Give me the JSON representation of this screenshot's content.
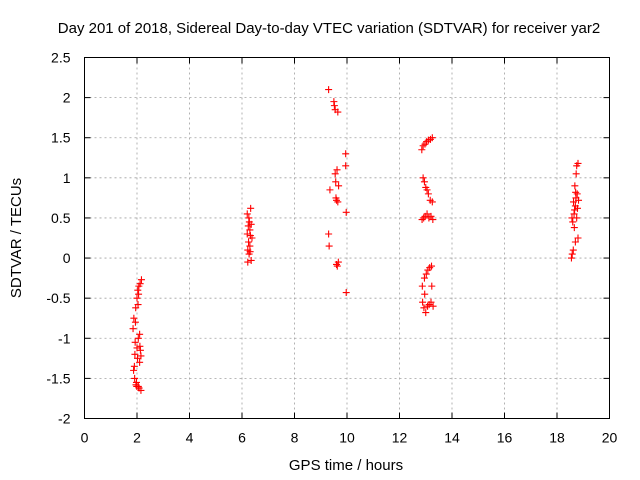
{
  "chart_data": {
    "type": "scatter",
    "title": "Day 201 of 2018, Sidereal Day-to-day VTEC variation (SDTVAR) for receiver yar2",
    "xlabel": "GPS time / hours",
    "ylabel": "SDTVAR / TECUs",
    "xlim": [
      0,
      20
    ],
    "ylim": [
      -2,
      2.5
    ],
    "xticks": [
      "0",
      "2",
      "4",
      "6",
      "8",
      "10",
      "12",
      "14",
      "16",
      "18",
      "20"
    ],
    "xtick_values": [
      0,
      2,
      4,
      6,
      8,
      10,
      12,
      14,
      16,
      18,
      20
    ],
    "yticks": [
      "-2",
      "-1.5",
      "-1",
      "-0.5",
      "0",
      "0.5",
      "1",
      "1.5",
      "2",
      "2.5"
    ],
    "ytick_values": [
      -2,
      -1.5,
      -1,
      -0.5,
      0,
      0.5,
      1,
      1.5,
      2,
      2.5
    ],
    "grid": true,
    "marker": "+",
    "color": "#ff0000",
    "series": [
      {
        "name": "SDTVAR",
        "points": [
          [
            1.85,
            -0.88
          ],
          [
            1.88,
            -0.75
          ],
          [
            1.9,
            -1.35
          ],
          [
            1.92,
            -1.2
          ],
          [
            1.93,
            -1.05
          ],
          [
            1.95,
            -0.62
          ],
          [
            1.96,
            -1.58
          ],
          [
            1.98,
            -1.55
          ],
          [
            2.0,
            -0.5
          ],
          [
            2.0,
            -1.12
          ],
          [
            2.02,
            -1.25
          ],
          [
            2.03,
            -0.4
          ],
          [
            2.05,
            -1.6
          ],
          [
            2.05,
            -1.0
          ],
          [
            2.07,
            -0.35
          ],
          [
            2.08,
            -1.62
          ],
          [
            2.1,
            -1.3
          ],
          [
            2.1,
            -0.95
          ],
          [
            2.12,
            -0.32
          ],
          [
            2.13,
            -1.15
          ],
          [
            2.15,
            -1.65
          ],
          [
            2.15,
            -1.22
          ],
          [
            2.17,
            -0.27
          ],
          [
            1.87,
            -1.4
          ],
          [
            1.94,
            -0.8
          ],
          [
            1.99,
            -1.6
          ],
          [
            2.06,
            -0.45
          ],
          [
            2.11,
            -1.1
          ],
          [
            1.91,
            -1.5
          ],
          [
            2.04,
            -0.58
          ],
          [
            6.2,
            0.55
          ],
          [
            6.2,
            0.3
          ],
          [
            6.22,
            0.1
          ],
          [
            6.22,
            -0.05
          ],
          [
            6.24,
            0.4
          ],
          [
            6.25,
            0.2
          ],
          [
            6.27,
            0.05
          ],
          [
            6.28,
            0.45
          ],
          [
            6.3,
            0.35
          ],
          [
            6.3,
            0.15
          ],
          [
            6.32,
            0.28
          ],
          [
            6.33,
            0.62
          ],
          [
            6.35,
            0.42
          ],
          [
            6.35,
            -0.03
          ],
          [
            6.38,
            0.25
          ],
          [
            6.26,
            0.5
          ],
          [
            6.31,
            0.08
          ],
          [
            9.3,
            2.1
          ],
          [
            9.3,
            0.3
          ],
          [
            9.32,
            0.15
          ],
          [
            9.35,
            0.85
          ],
          [
            9.5,
            1.95
          ],
          [
            9.52,
            1.9
          ],
          [
            9.55,
            1.85
          ],
          [
            9.55,
            1.05
          ],
          [
            9.57,
            0.95
          ],
          [
            9.58,
            0.75
          ],
          [
            9.6,
            -0.08
          ],
          [
            9.6,
            0.72
          ],
          [
            9.62,
            1.1
          ],
          [
            9.63,
            -0.1
          ],
          [
            9.65,
            0.7
          ],
          [
            9.65,
            1.82
          ],
          [
            9.67,
            -0.05
          ],
          [
            9.68,
            0.9
          ],
          [
            9.95,
            1.3
          ],
          [
            9.95,
            1.15
          ],
          [
            9.97,
            0.57
          ],
          [
            9.97,
            -0.43
          ],
          [
            12.85,
            1.35
          ],
          [
            12.86,
            0.48
          ],
          [
            12.87,
            -0.35
          ],
          [
            12.88,
            -0.55
          ],
          [
            12.9,
            1.0
          ],
          [
            12.9,
            1.4
          ],
          [
            12.92,
            0.5
          ],
          [
            12.93,
            -0.62
          ],
          [
            12.95,
            0.95
          ],
          [
            12.95,
            -0.25
          ],
          [
            12.97,
            1.42
          ],
          [
            12.98,
            0.52
          ],
          [
            13.0,
            0.88
          ],
          [
            13.0,
            -0.68
          ],
          [
            13.02,
            -0.2
          ],
          [
            13.03,
            1.45
          ],
          [
            13.05,
            0.55
          ],
          [
            13.05,
            0.85
          ],
          [
            13.07,
            -0.6
          ],
          [
            13.08,
            -0.15
          ],
          [
            13.1,
            1.47
          ],
          [
            13.1,
            0.8
          ],
          [
            13.12,
            0.5
          ],
          [
            13.13,
            -0.58
          ],
          [
            13.15,
            -0.12
          ],
          [
            13.17,
            0.72
          ],
          [
            13.18,
            1.48
          ],
          [
            13.2,
            0.52
          ],
          [
            13.2,
            -0.55
          ],
          [
            13.22,
            -0.1
          ],
          [
            13.25,
            0.7
          ],
          [
            13.25,
            1.5
          ],
          [
            13.27,
            0.48
          ],
          [
            13.28,
            -0.6
          ],
          [
            13.23,
            -0.35
          ],
          [
            12.96,
            -0.45
          ],
          [
            18.55,
            0.0
          ],
          [
            18.57,
            0.5
          ],
          [
            18.58,
            0.05
          ],
          [
            18.6,
            0.45
          ],
          [
            18.62,
            0.1
          ],
          [
            18.63,
            0.7
          ],
          [
            18.65,
            0.55
          ],
          [
            18.67,
            0.6
          ],
          [
            18.68,
            0.9
          ],
          [
            18.7,
            0.65
          ],
          [
            18.7,
            0.2
          ],
          [
            18.72,
            0.75
          ],
          [
            18.73,
            1.05
          ],
          [
            18.75,
            0.5
          ],
          [
            18.75,
            1.15
          ],
          [
            18.77,
            0.8
          ],
          [
            18.78,
            0.62
          ],
          [
            18.8,
            1.18
          ],
          [
            18.8,
            0.25
          ],
          [
            18.82,
            0.72
          ],
          [
            18.66,
            0.38
          ],
          [
            18.71,
            0.82
          ]
        ]
      }
    ]
  }
}
